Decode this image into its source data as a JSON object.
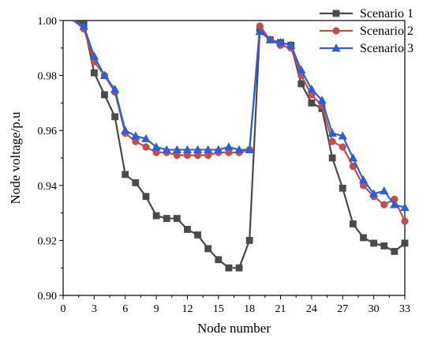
{
  "chart_data": {
    "type": "line",
    "xlabel": "Node number",
    "ylabel": "Node voltage/p.u",
    "xlim": [
      0,
      33
    ],
    "ylim": [
      0.9,
      1.0
    ],
    "x_ticks": [
      0,
      3,
      6,
      9,
      12,
      15,
      18,
      21,
      24,
      27,
      30,
      33
    ],
    "y_ticks": [
      0.9,
      0.92,
      0.94,
      0.96,
      0.98,
      1.0
    ],
    "y_tick_labels": [
      "0.90",
      "0.92",
      "0.94",
      "0.96",
      "0.98",
      "1.00"
    ],
    "x_tick_labels": [
      "0",
      "3",
      "6",
      "9",
      "12",
      "15",
      "18",
      "21",
      "24",
      "27",
      "30",
      "33"
    ],
    "grid": false,
    "legend_position": "top-right",
    "x": [
      1,
      2,
      3,
      4,
      5,
      6,
      7,
      8,
      9,
      10,
      11,
      12,
      13,
      14,
      15,
      16,
      17,
      18,
      19,
      20,
      21,
      22,
      23,
      24,
      25,
      26,
      27,
      28,
      29,
      30,
      31,
      32,
      33
    ],
    "series": [
      {
        "name": "Scenario 1",
        "color": "#4a4a4a",
        "marker": "square",
        "values": [
          1.0,
          0.999,
          0.981,
          0.973,
          0.965,
          0.944,
          0.941,
          0.936,
          0.929,
          0.928,
          0.928,
          0.924,
          0.922,
          0.917,
          0.913,
          0.91,
          0.91,
          0.92,
          0.997,
          0.993,
          0.992,
          0.991,
          0.977,
          0.97,
          0.968,
          0.95,
          0.939,
          0.926,
          0.921,
          0.919,
          0.918,
          0.916,
          0.919
        ]
      },
      {
        "name": "Scenario 2",
        "color": "#c0504d",
        "marker": "circle",
        "values": [
          1.0,
          0.997,
          0.985,
          0.98,
          0.974,
          0.959,
          0.956,
          0.954,
          0.952,
          0.952,
          0.951,
          0.951,
          0.951,
          0.951,
          0.952,
          0.952,
          0.952,
          0.953,
          0.998,
          0.993,
          0.991,
          0.99,
          0.98,
          0.973,
          0.969,
          0.956,
          0.954,
          0.947,
          0.94,
          0.936,
          0.933,
          0.935,
          0.927
        ]
      },
      {
        "name": "Scenario 3",
        "color": "#2e5fd6",
        "marker": "triangle",
        "values": [
          1.0,
          0.998,
          0.987,
          0.98,
          0.975,
          0.96,
          0.958,
          0.957,
          0.954,
          0.953,
          0.953,
          0.953,
          0.953,
          0.953,
          0.953,
          0.954,
          0.953,
          0.953,
          0.996,
          0.993,
          0.992,
          0.991,
          0.982,
          0.975,
          0.971,
          0.959,
          0.958,
          0.95,
          0.942,
          0.937,
          0.938,
          0.933,
          0.932
        ]
      }
    ]
  }
}
